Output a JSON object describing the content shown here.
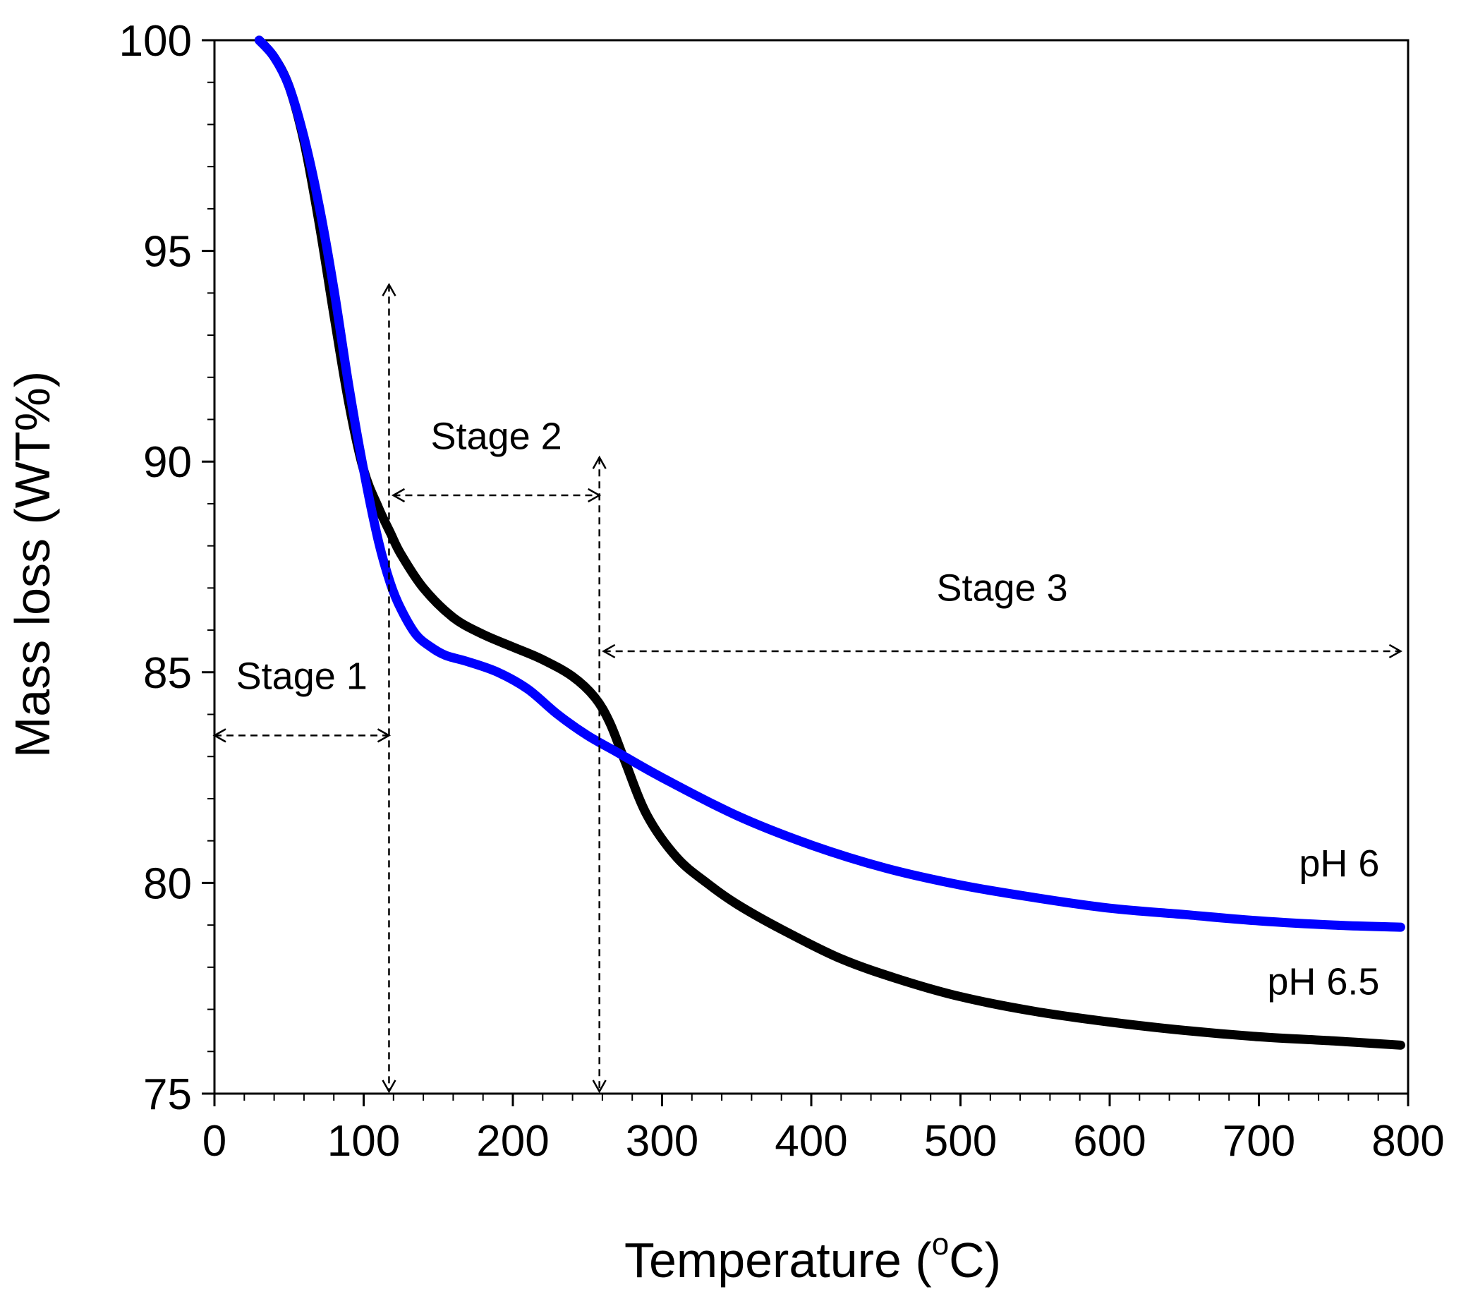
{
  "chart_data": {
    "type": "line",
    "xlabel": "Temperature (°C)",
    "xlabel_prefix": "Temperature (",
    "xlabel_degree": "o",
    "xlabel_suffix": "C)",
    "ylabel": "Mass loss (WT%)",
    "xlim": [
      0,
      800
    ],
    "ylim": [
      75,
      100
    ],
    "xticks": [
      0,
      100,
      200,
      300,
      400,
      500,
      600,
      700,
      800
    ],
    "yticks": [
      75,
      80,
      85,
      90,
      95,
      100
    ],
    "series": [
      {
        "name": "pH 6.5",
        "color": "#000000",
        "x": [
          30,
          40,
          50,
          60,
          70,
          80,
          90,
          100,
          110,
          118,
          125,
          140,
          160,
          180,
          200,
          220,
          240,
          255,
          265,
          275,
          290,
          310,
          330,
          350,
          380,
          420,
          460,
          500,
          550,
          600,
          650,
          700,
          750,
          795
        ],
        "y": [
          100,
          99.6,
          98.9,
          97.6,
          95.7,
          93.5,
          91.4,
          89.8,
          88.9,
          88.3,
          87.8,
          87.0,
          86.3,
          85.9,
          85.6,
          85.3,
          84.9,
          84.4,
          83.8,
          82.9,
          81.6,
          80.6,
          80.0,
          79.5,
          78.9,
          78.2,
          77.7,
          77.3,
          76.95,
          76.7,
          76.5,
          76.35,
          76.25,
          76.15
        ]
      },
      {
        "name": "pH 6",
        "color": "#0000ff",
        "x": [
          30,
          40,
          50,
          60,
          70,
          80,
          90,
          100,
          110,
          118,
          125,
          135,
          145,
          155,
          170,
          190,
          210,
          230,
          250,
          270,
          300,
          350,
          400,
          450,
          500,
          550,
          600,
          650,
          700,
          750,
          795
        ],
        "y": [
          100,
          99.6,
          98.9,
          97.7,
          96.1,
          94.1,
          91.8,
          89.8,
          88.1,
          87.1,
          86.5,
          85.9,
          85.6,
          85.4,
          85.25,
          85.0,
          84.6,
          84.0,
          83.5,
          83.1,
          82.5,
          81.6,
          80.9,
          80.35,
          79.95,
          79.65,
          79.4,
          79.25,
          79.1,
          79.0,
          78.95
        ]
      }
    ],
    "annotations": [
      {
        "text": "Stage 1",
        "range": [
          0,
          117
        ]
      },
      {
        "text": "Stage 2",
        "range": [
          117,
          258
        ]
      },
      {
        "text": "Stage 3",
        "range": [
          258,
          795
        ]
      }
    ],
    "dividers": [
      {
        "x": 117,
        "y_top": 94.2
      },
      {
        "x": 258,
        "y_top": 90.1
      }
    ]
  }
}
